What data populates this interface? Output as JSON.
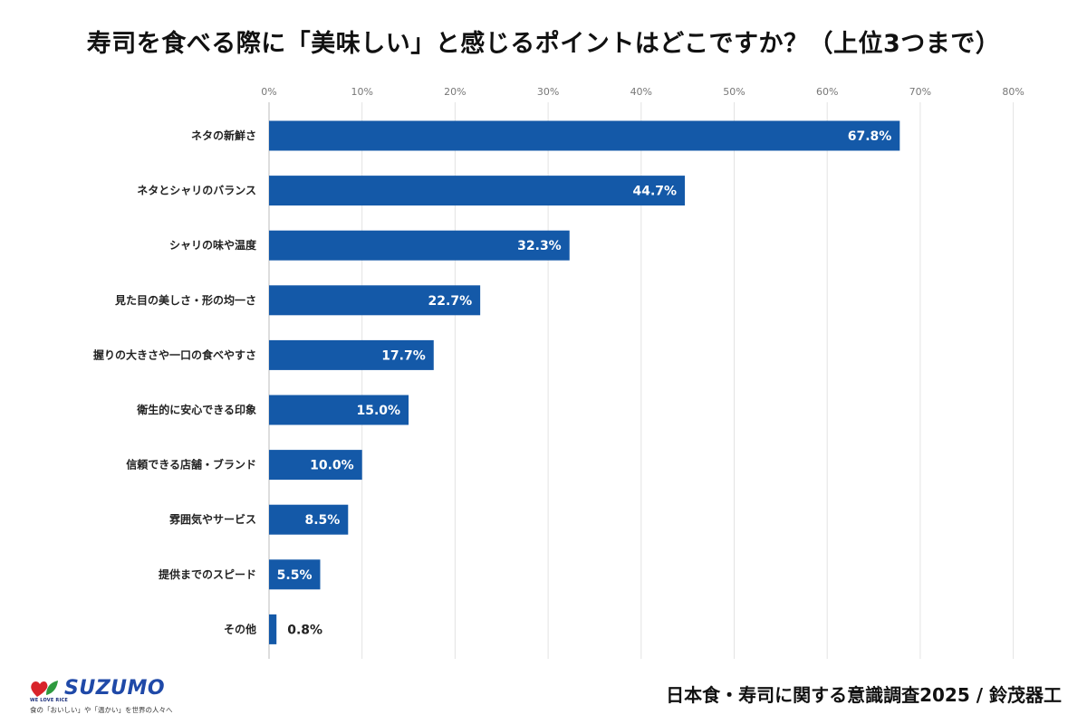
{
  "chart_data": {
    "type": "bar",
    "orientation": "horizontal",
    "title": "寿司を食べる際に「美味しい」と感じるポイントはどこですか？（上位3つまで）",
    "categories": [
      "ネタの新鮮さ",
      "ネタとシャリのバランス",
      "シャリの味や温度",
      "見た目の美しさ・形の均一さ",
      "握りの大きさや一口の食べやすさ",
      "衛生的に安心できる印象",
      "信頼できる店舗・ブランド",
      "雰囲気やサービス",
      "提供までのスピード",
      "その他"
    ],
    "values": [
      67.8,
      44.7,
      32.3,
      22.7,
      17.7,
      15.0,
      10.0,
      8.5,
      5.5,
      0.8
    ],
    "value_labels": [
      "67.8%",
      "44.7%",
      "32.3%",
      "22.7%",
      "17.7%",
      "15.0%",
      "10.0%",
      "8.5%",
      "5.5%",
      "0.8%"
    ],
    "xlim": [
      0,
      80
    ],
    "xticks": [
      0,
      10,
      20,
      30,
      40,
      50,
      60,
      70,
      80
    ],
    "xtick_labels": [
      "0%",
      "10%",
      "20%",
      "30%",
      "40%",
      "50%",
      "60%",
      "70%",
      "80%"
    ],
    "grid": true,
    "bar_color": "#1459a8"
  },
  "footer": {
    "source": "日本食・寿司に関する意識調査2025 / 鈴茂器工"
  },
  "logo": {
    "name": "SUZUMO",
    "tagline": "WE LOVE RICE",
    "sub": "食の「おいしい」や「温かい」を世界の人々へ"
  },
  "colors": {
    "brand_blue": "#1f49a8",
    "heart_red": "#d8232a",
    "leaf_green": "#2e9a3e"
  }
}
